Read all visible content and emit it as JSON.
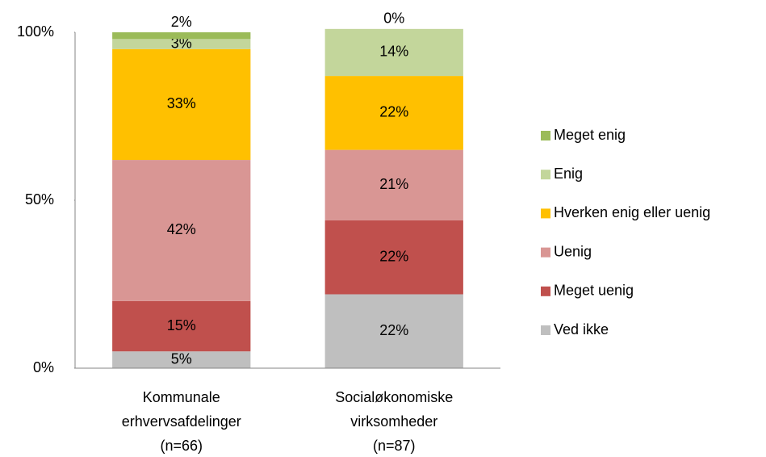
{
  "chart_data": {
    "type": "stacked_bar",
    "categories": [
      [
        "Kommunale",
        "erhvervsafdelinger",
        "(n=66)"
      ],
      [
        "Socialøkonomiske",
        "virksomheder",
        "(n=87)"
      ]
    ],
    "series": [
      {
        "name": "Ved ikke",
        "color": "#bfbfbf",
        "values": [
          5,
          22
        ],
        "value_labels": [
          "5%",
          "22%"
        ]
      },
      {
        "name": "Meget uenig",
        "color": "#c0504d",
        "values": [
          15,
          22
        ],
        "value_labels": [
          "15%",
          "22%"
        ]
      },
      {
        "name": "Uenig",
        "color": "#d99694",
        "values": [
          42,
          21
        ],
        "value_labels": [
          "42%",
          "21%"
        ]
      },
      {
        "name": "Hverken enig eller uenig",
        "color": "#ffc000",
        "values": [
          33,
          22
        ],
        "value_labels": [
          "33%",
          "22%"
        ]
      },
      {
        "name": "Enig",
        "color": "#c3d69b",
        "values": [
          3,
          14
        ],
        "value_labels": [
          "3%",
          "14%"
        ]
      },
      {
        "name": "Meget enig",
        "color": "#9bbb59",
        "values": [
          2,
          0
        ],
        "value_labels": [
          "2%",
          "0%"
        ]
      }
    ],
    "ylim": [
      0,
      100
    ],
    "yticks": [
      {
        "value": 0,
        "label": "0%"
      },
      {
        "value": 50,
        "label": "50%"
      },
      {
        "value": 100,
        "label": "100%"
      }
    ],
    "grid": false,
    "legend": "right"
  }
}
